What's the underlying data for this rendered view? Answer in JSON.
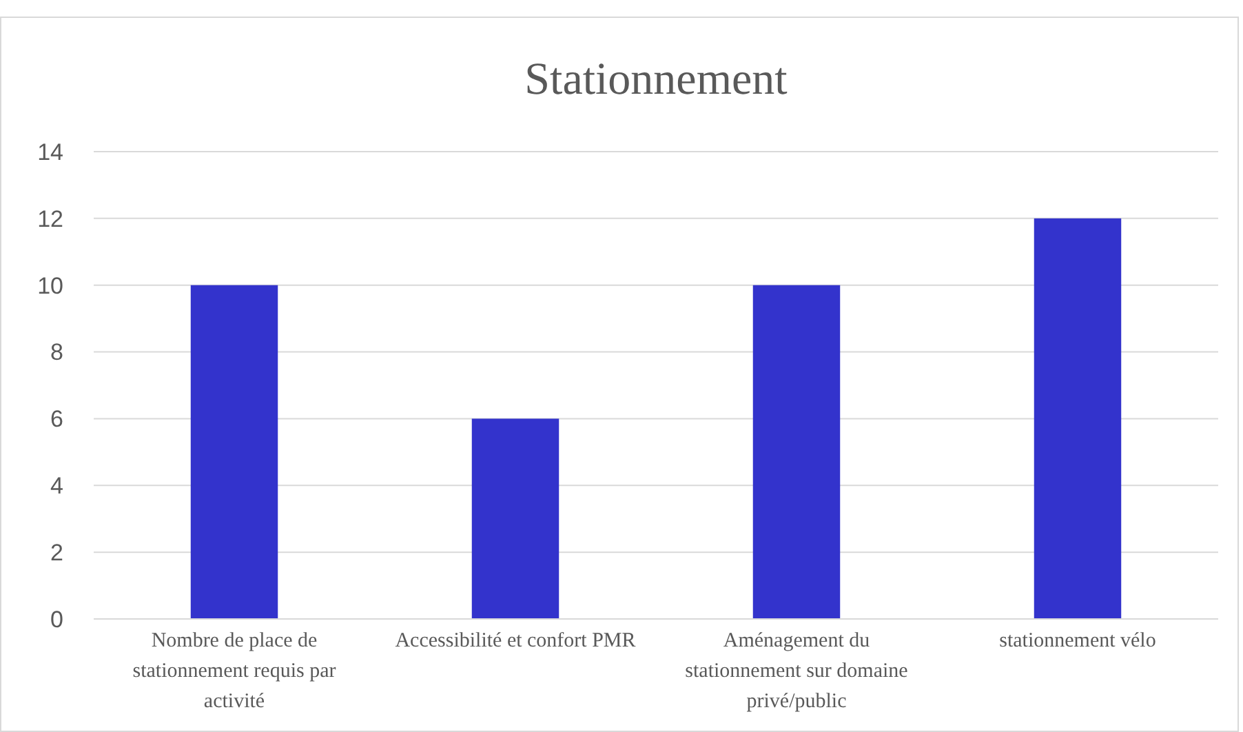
{
  "chart_data": {
    "type": "bar",
    "title": "Stationnement",
    "categories": [
      "Nombre de place de stationnement requis par activité",
      "Accessibilité et confort PMR",
      "Aménagement du stationnement sur domaine privé/public",
      "stationnement vélo"
    ],
    "values": [
      10,
      6,
      10,
      12
    ],
    "color": "#3333cc",
    "ylim": [
      0,
      14
    ],
    "yticks": [
      0,
      2,
      4,
      6,
      8,
      10,
      12,
      14
    ],
    "grid": "y"
  }
}
